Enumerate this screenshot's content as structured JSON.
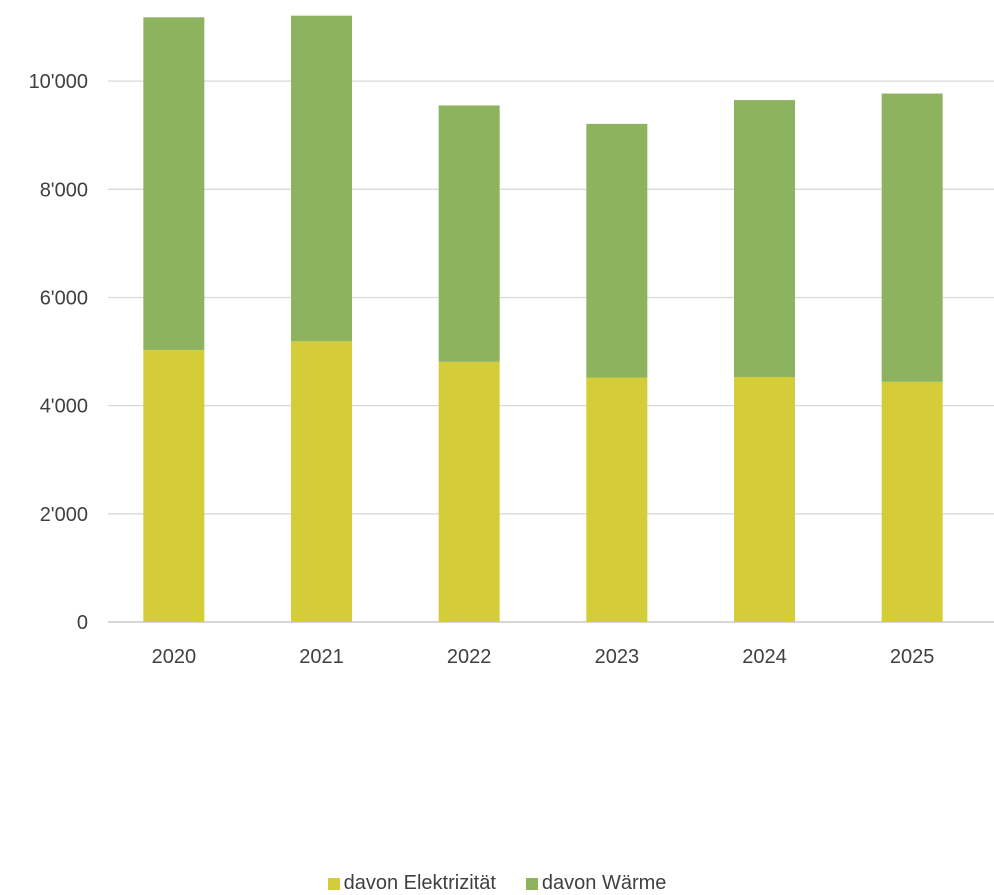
{
  "chart_data": {
    "type": "bar",
    "stacked": true,
    "categories": [
      "2020",
      "2021",
      "2022",
      "2023",
      "2024",
      "2025"
    ],
    "series": [
      {
        "name": "davon Elektrizität",
        "color": "#d4cd39",
        "values": [
          5030,
          5190,
          4810,
          4520,
          4530,
          4440
        ]
      },
      {
        "name": "davon Wärme",
        "color": "#8db35f",
        "values": [
          6150,
          6020,
          4740,
          4690,
          5120,
          5330
        ]
      }
    ],
    "ylim": [
      0,
      11500
    ],
    "yticks": [
      0,
      2000,
      4000,
      6000,
      8000,
      10000
    ],
    "ytick_labels": [
      "0",
      "2'000",
      "4'000",
      "6'000",
      "8'000",
      "10'000"
    ],
    "grid": true,
    "legend_position": "bottom"
  }
}
